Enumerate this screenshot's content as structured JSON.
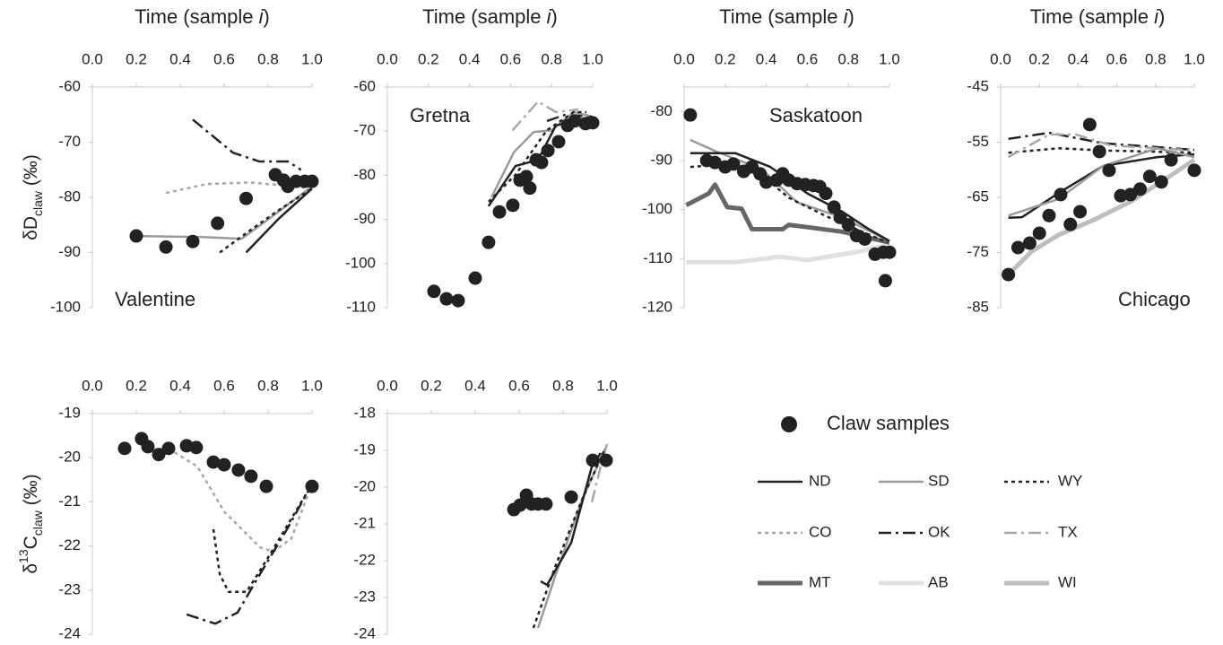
{
  "chart_data": [
    {
      "type": "line",
      "title": [
        "Time (sample ",
        "i",
        ")"
      ],
      "label": "Valentine",
      "ylabel": [
        {
          "text": "δD"
        },
        {
          "text": "claw",
          "shift": "sub"
        },
        {
          "text": " (‰)"
        }
      ],
      "xlim": [
        0,
        1
      ],
      "xticks": [
        {
          "value": 0,
          "label": "0.0"
        },
        0.2,
        0.4,
        0.6,
        0.8,
        {
          "value": 1,
          "label": "1.0"
        }
      ],
      "ylim": [
        -100,
        -60
      ],
      "yticks": [
        -100,
        -90,
        -80,
        -70,
        -60
      ],
      "series": [
        {
          "name": "SD",
          "x": [
            0.2,
            0.5,
            0.68,
            0.8,
            0.9,
            1.0
          ],
          "values": [
            -87,
            -87.2,
            -87.5,
            -84,
            -81,
            -78
          ]
        },
        {
          "name": "CO",
          "x": [
            0.335,
            0.52,
            0.72,
            0.89,
            1.0
          ],
          "values": [
            -79.2,
            -77.6,
            -77.3,
            -77.9,
            -78.4
          ]
        },
        {
          "name": "OK",
          "x": [
            0.457,
            0.64,
            0.76,
            0.89,
            0.95
          ],
          "values": [
            -65.9,
            -71.9,
            -73.5,
            -73.5,
            -75
          ]
        },
        {
          "name": "ND",
          "x": [
            0.7,
            0.845,
            1.0
          ],
          "values": [
            -90,
            -84,
            -78.4
          ]
        },
        {
          "name": "WY",
          "x": [
            0.58,
            0.7,
            0.845,
            1.0
          ],
          "values": [
            -90,
            -86.5,
            -82.4,
            -78.4
          ]
        },
        {
          "name": "Claw samples",
          "x": [
            0.2,
            0.335,
            0.457,
            0.57,
            0.7,
            0.833,
            0.87,
            0.89,
            0.927,
            0.967,
            1.0
          ],
          "values": [
            -87,
            -89,
            -88,
            -84.7,
            -80.2,
            -75.9,
            -76.9,
            -78,
            -77.1,
            -77.1,
            -77.1
          ]
        }
      ]
    },
    {
      "type": "line",
      "title": [
        "Time (sample ",
        "i",
        ")"
      ],
      "label": "Gretna",
      "xlim": [
        0,
        1
      ],
      "xticks": [
        {
          "value": 0,
          "label": "0.0"
        },
        0.2,
        0.4,
        0.6,
        0.8,
        {
          "value": 1,
          "label": "1.0"
        }
      ],
      "ylim": [
        -110,
        -60
      ],
      "yticks": [
        -110,
        -100,
        -90,
        -80,
        -70,
        -60
      ],
      "series": [
        {
          "name": "TX",
          "x": [
            0.61,
            0.734,
            0.821,
            0.93
          ],
          "values": [
            -69.8,
            -63.3,
            -65.7,
            -65.1
          ]
        },
        {
          "name": "OK",
          "x": [
            0.777,
            0.865,
            0.996
          ],
          "values": [
            -67.7,
            -66.3,
            -66.7
          ]
        },
        {
          "name": "SD",
          "x": [
            0.507,
            0.616,
            0.712,
            0.8,
            0.908,
            1.0
          ],
          "values": [
            -85,
            -74.8,
            -70.2,
            -69.8,
            -65.7,
            -66.7
          ]
        },
        {
          "name": "WY",
          "x": [
            0.493,
            0.624,
            0.777,
            0.908,
            0.97
          ],
          "values": [
            -86,
            -79.9,
            -69.8,
            -65.7,
            -65.7
          ]
        },
        {
          "name": "ND",
          "x": [
            0.493,
            0.624,
            0.734,
            0.821,
            0.996
          ],
          "values": [
            -87,
            -77.9,
            -76.5,
            -68.7,
            -66.7
          ]
        },
        {
          "name": "Claw samples",
          "x": [
            0.227,
            0.288,
            0.345,
            0.428,
            0.493,
            0.546,
            0.611,
            0.646,
            0.677,
            0.694,
            0.725,
            0.751,
            0.782,
            0.834,
            0.878,
            0.913,
            0.965,
            1.0
          ],
          "values": [
            -106.3,
            -108,
            -108.4,
            -103.3,
            -95.2,
            -88.3,
            -86.8,
            -81.1,
            -80.3,
            -82.9,
            -76.5,
            -77.1,
            -74.4,
            -72.4,
            -68.7,
            -67.7,
            -68.3,
            -68.1
          ]
        }
      ]
    },
    {
      "type": "line",
      "title": [
        "Time (sample ",
        "i",
        ")"
      ],
      "label": "Saskatoon",
      "xlim": [
        0,
        1
      ],
      "xticks": [
        {
          "value": 0,
          "label": "0.0"
        },
        0.2,
        0.4,
        0.6,
        0.8,
        {
          "value": 1,
          "label": "1.0"
        }
      ],
      "ylim": [
        -120,
        -75
      ],
      "yticks": [
        -120,
        -110,
        -100,
        -90,
        -80
      ],
      "series": [
        {
          "name": "AB",
          "x": [
            0.01,
            0.25,
            0.47,
            0.6,
            0.86,
            1.0
          ],
          "values": [
            -110.7,
            -110.7,
            -109.6,
            -110.3,
            -108.5,
            -107.1
          ]
        },
        {
          "name": "MT",
          "x": [
            0.01,
            0.12,
            0.15,
            0.21,
            0.28,
            0.33,
            0.48,
            0.51,
            0.77,
            1.0
          ],
          "values": [
            -99.1,
            -96.7,
            -94.9,
            -99.5,
            -99.8,
            -104,
            -104,
            -103.1,
            -104.5,
            -106.7
          ]
        },
        {
          "name": "SD",
          "x": [
            0.03,
            0.16,
            0.38,
            0.55,
            0.77,
            1.0
          ],
          "values": [
            -85.8,
            -88.2,
            -91.8,
            -98.5,
            -101.6,
            -106.4
          ]
        },
        {
          "name": "WY",
          "x": [
            0.03,
            0.16,
            0.38,
            0.51,
            0.69,
            0.99
          ],
          "values": [
            -91.3,
            -90.9,
            -93.1,
            -97.6,
            -101.3,
            -106.7
          ]
        },
        {
          "name": "ND",
          "x": [
            0.03,
            0.25,
            0.42,
            0.6,
            0.77,
            0.9,
            1.0
          ],
          "values": [
            -88.5,
            -88.5,
            -91.3,
            -96.7,
            -100.4,
            -104,
            -106.4
          ]
        },
        {
          "name": "Claw samples",
          "x": [
            0.03,
            0.11,
            0.15,
            0.2,
            0.24,
            0.29,
            0.33,
            0.37,
            0.4,
            0.45,
            0.48,
            0.51,
            0.55,
            0.59,
            0.63,
            0.66,
            0.69,
            0.73,
            0.76,
            0.8,
            0.84,
            0.88,
            0.93,
            0.97,
            0.98,
            1.0
          ],
          "values": [
            -80.7,
            -90,
            -90.4,
            -91.3,
            -90.7,
            -92.2,
            -91.3,
            -92.7,
            -94.4,
            -94,
            -92.7,
            -94,
            -94.7,
            -94.9,
            -95.1,
            -95.3,
            -96.7,
            -99.5,
            -101.6,
            -103.1,
            -105.3,
            -106,
            -109.1,
            -108.7,
            -114.5,
            -108.7
          ]
        }
      ]
    },
    {
      "type": "line",
      "title": [
        "Time (sample ",
        "i",
        ")"
      ],
      "label": "Chicago",
      "xlim": [
        0,
        1
      ],
      "xticks": [
        {
          "value": 0,
          "label": "0.0"
        },
        0.2,
        0.4,
        0.6,
        0.8,
        {
          "value": 1,
          "label": "1.0"
        }
      ],
      "ylim": [
        -85,
        -45
      ],
      "yticks": [
        -85,
        -75,
        -65,
        -55,
        -45
      ],
      "series": [
        {
          "name": "WI",
          "x": [
            0.04,
            0.16,
            0.3,
            0.48,
            0.67,
            0.85,
            1.0
          ],
          "values": [
            -79,
            -74.8,
            -71.8,
            -69.1,
            -65.8,
            -61.7,
            -58.2
          ]
        },
        {
          "name": "OK",
          "x": [
            0.04,
            0.25,
            0.53,
            1.0
          ],
          "values": [
            -54.4,
            -53.3,
            -55.2,
            -56.4
          ]
        },
        {
          "name": "WY",
          "x": [
            0.04,
            0.3,
            0.53,
            1.0
          ],
          "values": [
            -56.9,
            -56.1,
            -56.5,
            -56.9
          ]
        },
        {
          "name": "TX",
          "x": [
            0.04,
            0.25,
            0.39,
            0.57,
            1.0
          ],
          "values": [
            -57.7,
            -53.6,
            -53.6,
            -55.6,
            -56.5
          ]
        },
        {
          "name": "ND",
          "x": [
            0.04,
            0.11,
            0.3,
            0.53,
            0.81,
            1.0
          ],
          "values": [
            -68.7,
            -68.6,
            -64.2,
            -59.3,
            -57.7,
            -57.2
          ]
        },
        {
          "name": "SD",
          "x": [
            0.04,
            0.3,
            0.53,
            0.81,
            1.0
          ],
          "values": [
            -68.3,
            -65.3,
            -59.3,
            -56.1,
            -57.7
          ]
        },
        {
          "name": "Claw samples",
          "x": [
            0.04,
            0.09,
            0.15,
            0.2,
            0.25,
            0.31,
            0.36,
            0.41,
            0.46,
            0.51,
            0.56,
            0.62,
            0.67,
            0.72,
            0.77,
            0.83,
            0.88,
            1.0
          ],
          "values": [
            -79,
            -74.1,
            -73.3,
            -71.5,
            -68.3,
            -64.5,
            -69.9,
            -67.6,
            -51.8,
            -56.7,
            -60.1,
            -64.7,
            -64.5,
            -63.5,
            -61.2,
            -62.2,
            -58.2,
            -60.1
          ]
        }
      ]
    },
    {
      "type": "line",
      "ylabel": [
        {
          "text": "δ"
        },
        {
          "text": "13",
          "shift": "super"
        },
        {
          "text": "C"
        },
        {
          "text": "claw",
          "shift": "sub"
        },
        {
          "text": " (‰)"
        }
      ],
      "xlim": [
        0,
        1
      ],
      "xticks": [
        {
          "value": 0,
          "label": "0.0"
        },
        0.2,
        0.4,
        0.6,
        0.8,
        {
          "value": 1,
          "label": "1.0"
        }
      ],
      "ylim": [
        -24,
        -19
      ],
      "yticks": [
        -24,
        -23,
        -22,
        -21,
        -20,
        -19
      ],
      "series": [
        {
          "name": "CO",
          "x": [
            0.347,
            0.478,
            0.6,
            0.763,
            0.824,
            0.906,
            1.0
          ],
          "values": [
            -19.79,
            -20.2,
            -21.22,
            -22.03,
            -22.13,
            -21.83,
            -20.6
          ]
        },
        {
          "name": "WY",
          "x": [
            0.551,
            0.58,
            0.62,
            0.702,
            0.804,
            1.0
          ],
          "values": [
            -21.62,
            -22.64,
            -23.04,
            -23.04,
            -22.23,
            -20.6
          ]
        },
        {
          "name": "OK",
          "x": [
            0.429,
            0.559,
            0.661,
            0.763,
            0.886,
            1.0
          ],
          "values": [
            -23.55,
            -23.76,
            -23.51,
            -22.64,
            -21.62,
            -20.6
          ]
        },
        {
          "name": "Claw samples",
          "x": [
            0.147,
            0.224,
            0.253,
            0.302,
            0.347,
            0.429,
            0.473,
            0.551,
            0.6,
            0.665,
            0.722,
            0.792,
            1.0
          ],
          "values": [
            -19.79,
            -19.57,
            -19.75,
            -19.93,
            -19.79,
            -19.73,
            -19.77,
            -20.1,
            -20.16,
            -20.28,
            -20.42,
            -20.65,
            -20.65
          ]
        }
      ]
    },
    {
      "type": "line",
      "xlim": [
        0,
        1
      ],
      "xticks": [
        {
          "value": 0,
          "label": "0.0"
        },
        0.2,
        0.4,
        0.6,
        0.8,
        {
          "value": 1,
          "label": "1.0"
        }
      ],
      "ylim": [
        -24,
        -18
      ],
      "yticks": [
        -24,
        -23,
        -22,
        -21,
        -20,
        -19,
        -18
      ],
      "series": [
        {
          "name": "TX",
          "x": [
            0.931,
            0.971,
            1.0
          ],
          "values": [
            -20.41,
            -19.44,
            -18.83
          ]
        },
        {
          "name": "SD",
          "x": [
            0.686,
            0.767,
            0.89,
            0.992
          ],
          "values": [
            -23.83,
            -22.37,
            -20.29,
            -18.95
          ]
        },
        {
          "name": "WY",
          "x": [
            0.665,
            0.767,
            0.89,
            0.992
          ],
          "values": [
            -23.83,
            -22.12,
            -20.29,
            -18.95
          ]
        },
        {
          "name": "ND",
          "x": [
            0.698,
            0.727,
            0.837,
            0.931,
            0.971
          ],
          "values": [
            -22.56,
            -22.66,
            -21.51,
            -19.44,
            -19.07
          ]
        },
        {
          "name": "Claw samples",
          "x": [
            0.576,
            0.604,
            0.633,
            0.657,
            0.686,
            0.722,
            0.837,
            0.935,
            0.996
          ],
          "values": [
            -20.61,
            -20.49,
            -20.22,
            -20.46,
            -20.46,
            -20.46,
            -20.27,
            -19.27,
            -19.27
          ]
        }
      ]
    }
  ],
  "legend": [
    {
      "name": "Claw samples",
      "marker": "circle",
      "color": "#222222"
    },
    {
      "name": "ND",
      "style": "solid",
      "color": "#222222"
    },
    {
      "name": "SD",
      "style": "solid",
      "color": "#9a9a9a"
    },
    {
      "name": "WY",
      "style": "dotted",
      "color": "#222222"
    },
    {
      "name": "CO",
      "style": "dotted",
      "color": "#a8a8a8"
    },
    {
      "name": "OK",
      "style": "dash-dot",
      "color": "#222222"
    },
    {
      "name": "TX",
      "style": "dash-dot",
      "color": "#a8a8a8"
    },
    {
      "name": "MT",
      "style": "thick",
      "color": "#666666"
    },
    {
      "name": "AB",
      "style": "thick",
      "color": "#e0e0e0"
    },
    {
      "name": "WI",
      "style": "thick",
      "color": "#bdbdbd"
    }
  ]
}
